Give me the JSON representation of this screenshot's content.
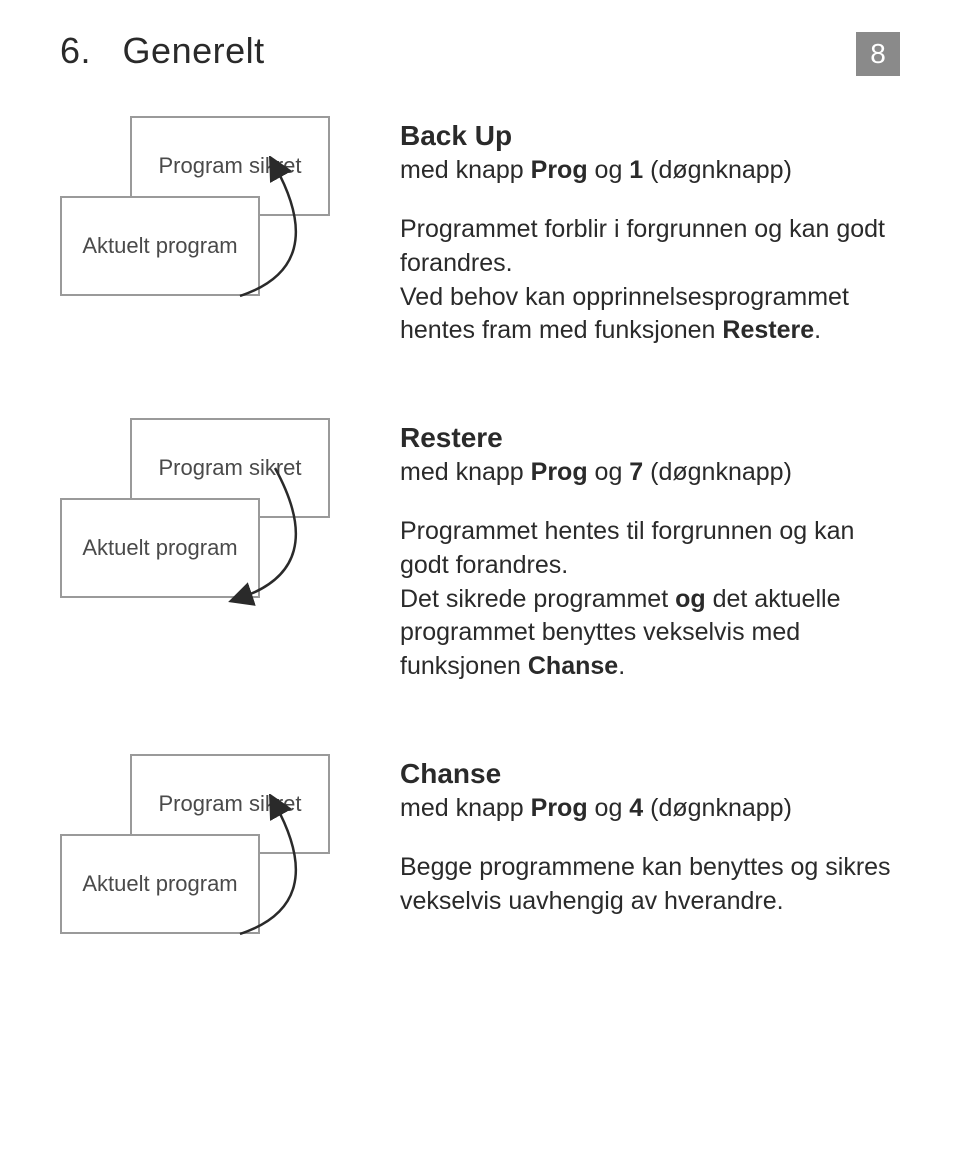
{
  "header": {
    "section_number": "6.",
    "section_title": "Generelt",
    "page_number": "8"
  },
  "blocks": [
    {
      "diagram": {
        "back_label": "Program sikret",
        "front_label": "Aktuelt program",
        "arrow_direction": "up"
      },
      "title": "Back Up",
      "sub_prefix": "med knapp ",
      "sub_bold": "Prog",
      "sub_mid": " og ",
      "sub_bold2": "1",
      "sub_suffix": " (døgnknapp)",
      "body_segments": [
        {
          "t": "Programmet forblir i forgrunnen og kan godt forandres."
        },
        {
          "br": true
        },
        {
          "t": "Ved behov kan opprinnelsesprogrammet hentes fram med funksjonen "
        },
        {
          "b": "Restere"
        },
        {
          "t": "."
        }
      ]
    },
    {
      "diagram": {
        "back_label": "Program sikret",
        "front_label": "Aktuelt program",
        "arrow_direction": "down"
      },
      "title": "Restere",
      "sub_prefix": "med knapp ",
      "sub_bold": "Prog",
      "sub_mid": " og ",
      "sub_bold2": "7",
      "sub_suffix": " (døgnknapp)",
      "body_segments": [
        {
          "t": "Programmet hentes til forgrunnen og kan godt forandres."
        },
        {
          "br": true
        },
        {
          "t": "Det sikrede programmet "
        },
        {
          "b": "og"
        },
        {
          "t": " det aktuelle programmet benyttes vekselvis med funksjonen "
        },
        {
          "b": "Chanse"
        },
        {
          "t": "."
        }
      ]
    },
    {
      "diagram": {
        "back_label": "Program sikret",
        "front_label": "Aktuelt program",
        "arrow_direction": "up"
      },
      "title": "Chanse",
      "sub_prefix": "med knapp ",
      "sub_bold": "Prog",
      "sub_mid": " og ",
      "sub_bold2": "4",
      "sub_suffix": " (døgnknapp)",
      "body_segments": [
        {
          "t": "Begge programmene kan benyttes og sikres vekselvis uavhengig av hverandre."
        }
      ]
    }
  ],
  "style": {
    "card_border_color": "#9a9a9a",
    "arrow_color": "#2a2a2a",
    "pagebox_bg": "#8a8a8a"
  }
}
